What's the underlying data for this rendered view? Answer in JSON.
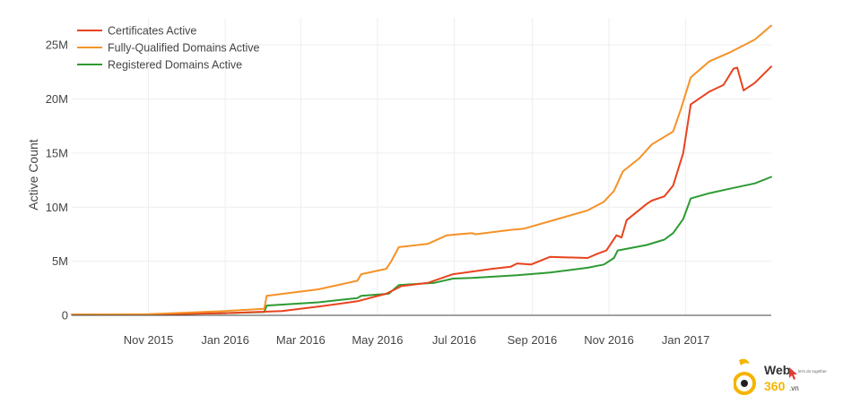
{
  "chart_data": {
    "type": "line",
    "title": "",
    "xlabel": "",
    "ylabel": "Active Count",
    "x_range": [
      "2015-09-01",
      "2017-03-10"
    ],
    "y_range": [
      0,
      27500000
    ],
    "grid": true,
    "legend_position": "top-left",
    "x_ticks": [
      {
        "date": "2015-11-01",
        "label": "Nov 2015"
      },
      {
        "date": "2016-01-01",
        "label": "Jan 2016"
      },
      {
        "date": "2016-03-01",
        "label": "Mar 2016"
      },
      {
        "date": "2016-05-01",
        "label": "May 2016"
      },
      {
        "date": "2016-07-01",
        "label": "Jul 2016"
      },
      {
        "date": "2016-09-01",
        "label": "Sep 2016"
      },
      {
        "date": "2016-11-01",
        "label": "Nov 2016"
      },
      {
        "date": "2017-01-01",
        "label": "Jan 2017"
      }
    ],
    "y_ticks": [
      {
        "value": 0,
        "label": "0"
      },
      {
        "value": 5000000,
        "label": "5M"
      },
      {
        "value": 10000000,
        "label": "10M"
      },
      {
        "value": 15000000,
        "label": "15M"
      },
      {
        "value": 20000000,
        "label": "20M"
      },
      {
        "value": 25000000,
        "label": "25M"
      }
    ],
    "series": [
      {
        "name": "Certificates Active",
        "color": "#e8431d",
        "points": [
          [
            "2015-09-01",
            50000
          ],
          [
            "2015-11-01",
            80000
          ],
          [
            "2016-01-01",
            200000
          ],
          [
            "2016-02-15",
            400000
          ],
          [
            "2016-03-15",
            800000
          ],
          [
            "2016-04-15",
            1300000
          ],
          [
            "2016-05-08",
            2000000
          ],
          [
            "2016-05-20",
            2700000
          ],
          [
            "2016-06-10",
            3000000
          ],
          [
            "2016-06-30",
            3800000
          ],
          [
            "2016-07-31",
            4300000
          ],
          [
            "2016-08-15",
            4500000
          ],
          [
            "2016-08-20",
            4800000
          ],
          [
            "2016-08-31",
            4700000
          ],
          [
            "2016-09-15",
            5400000
          ],
          [
            "2016-10-15",
            5300000
          ],
          [
            "2016-10-23",
            5700000
          ],
          [
            "2016-10-30",
            6000000
          ],
          [
            "2016-11-07",
            7400000
          ],
          [
            "2016-11-11",
            7200000
          ],
          [
            "2016-11-15",
            8800000
          ],
          [
            "2016-12-01",
            10300000
          ],
          [
            "2016-12-05",
            10600000
          ],
          [
            "2016-12-15",
            11000000
          ],
          [
            "2016-12-22",
            12000000
          ],
          [
            "2016-12-30",
            15000000
          ],
          [
            "2017-01-05",
            19500000
          ],
          [
            "2017-01-20",
            20700000
          ],
          [
            "2017-01-31",
            21300000
          ],
          [
            "2017-02-08",
            22800000
          ],
          [
            "2017-02-11",
            22900000
          ],
          [
            "2017-02-16",
            20800000
          ],
          [
            "2017-02-25",
            21500000
          ],
          [
            "2017-03-10",
            23000000
          ]
        ]
      },
      {
        "name": "Fully-Qualified Domains Active",
        "color": "#f59227",
        "points": [
          [
            "2015-09-01",
            60000
          ],
          [
            "2015-11-01",
            100000
          ],
          [
            "2016-01-01",
            400000
          ],
          [
            "2016-02-01",
            600000
          ],
          [
            "2016-02-03",
            1800000
          ],
          [
            "2016-03-15",
            2400000
          ],
          [
            "2016-04-15",
            3200000
          ],
          [
            "2016-04-18",
            3800000
          ],
          [
            "2016-05-08",
            4300000
          ],
          [
            "2016-05-12",
            5000000
          ],
          [
            "2016-05-18",
            6300000
          ],
          [
            "2016-06-10",
            6600000
          ],
          [
            "2016-06-25",
            7400000
          ],
          [
            "2016-07-15",
            7600000
          ],
          [
            "2016-07-18",
            7500000
          ],
          [
            "2016-08-15",
            7900000
          ],
          [
            "2016-08-25",
            8000000
          ],
          [
            "2016-09-15",
            8700000
          ],
          [
            "2016-10-15",
            9700000
          ],
          [
            "2016-10-28",
            10500000
          ],
          [
            "2016-11-05",
            11500000
          ],
          [
            "2016-11-12",
            13300000
          ],
          [
            "2016-11-25",
            14500000
          ],
          [
            "2016-12-05",
            15800000
          ],
          [
            "2016-12-22",
            17000000
          ],
          [
            "2016-12-28",
            19000000
          ],
          [
            "2017-01-05",
            22000000
          ],
          [
            "2017-01-20",
            23500000
          ],
          [
            "2017-02-05",
            24300000
          ],
          [
            "2017-02-25",
            25500000
          ],
          [
            "2017-03-10",
            26800000
          ]
        ]
      },
      {
        "name": "Registered Domains Active",
        "color": "#2e9a33",
        "points": [
          [
            "2015-09-01",
            60000
          ],
          [
            "2015-11-01",
            80000
          ],
          [
            "2016-01-01",
            200000
          ],
          [
            "2016-02-01",
            300000
          ],
          [
            "2016-02-03",
            900000
          ],
          [
            "2016-03-15",
            1200000
          ],
          [
            "2016-04-15",
            1600000
          ],
          [
            "2016-04-18",
            1800000
          ],
          [
            "2016-05-10",
            2000000
          ],
          [
            "2016-05-18",
            2800000
          ],
          [
            "2016-06-15",
            3000000
          ],
          [
            "2016-06-30",
            3400000
          ],
          [
            "2016-07-15",
            3450000
          ],
          [
            "2016-08-20",
            3700000
          ],
          [
            "2016-09-15",
            3950000
          ],
          [
            "2016-10-15",
            4400000
          ],
          [
            "2016-10-28",
            4700000
          ],
          [
            "2016-11-05",
            5300000
          ],
          [
            "2016-11-08",
            6000000
          ],
          [
            "2016-12-01",
            6500000
          ],
          [
            "2016-12-15",
            7000000
          ],
          [
            "2016-12-22",
            7600000
          ],
          [
            "2016-12-30",
            8900000
          ],
          [
            "2017-01-05",
            10800000
          ],
          [
            "2017-01-20",
            11300000
          ],
          [
            "2017-02-05",
            11700000
          ],
          [
            "2017-02-25",
            12200000
          ],
          [
            "2017-03-10",
            12800000
          ]
        ]
      }
    ]
  },
  "watermark": {
    "brand": "Web",
    "brand_number": "360",
    "domain_suffix": ".vn",
    "tagline": "let's do together",
    "colors": {
      "mark": "#f4b400",
      "text": "#333333",
      "accent": "#e53935"
    }
  }
}
